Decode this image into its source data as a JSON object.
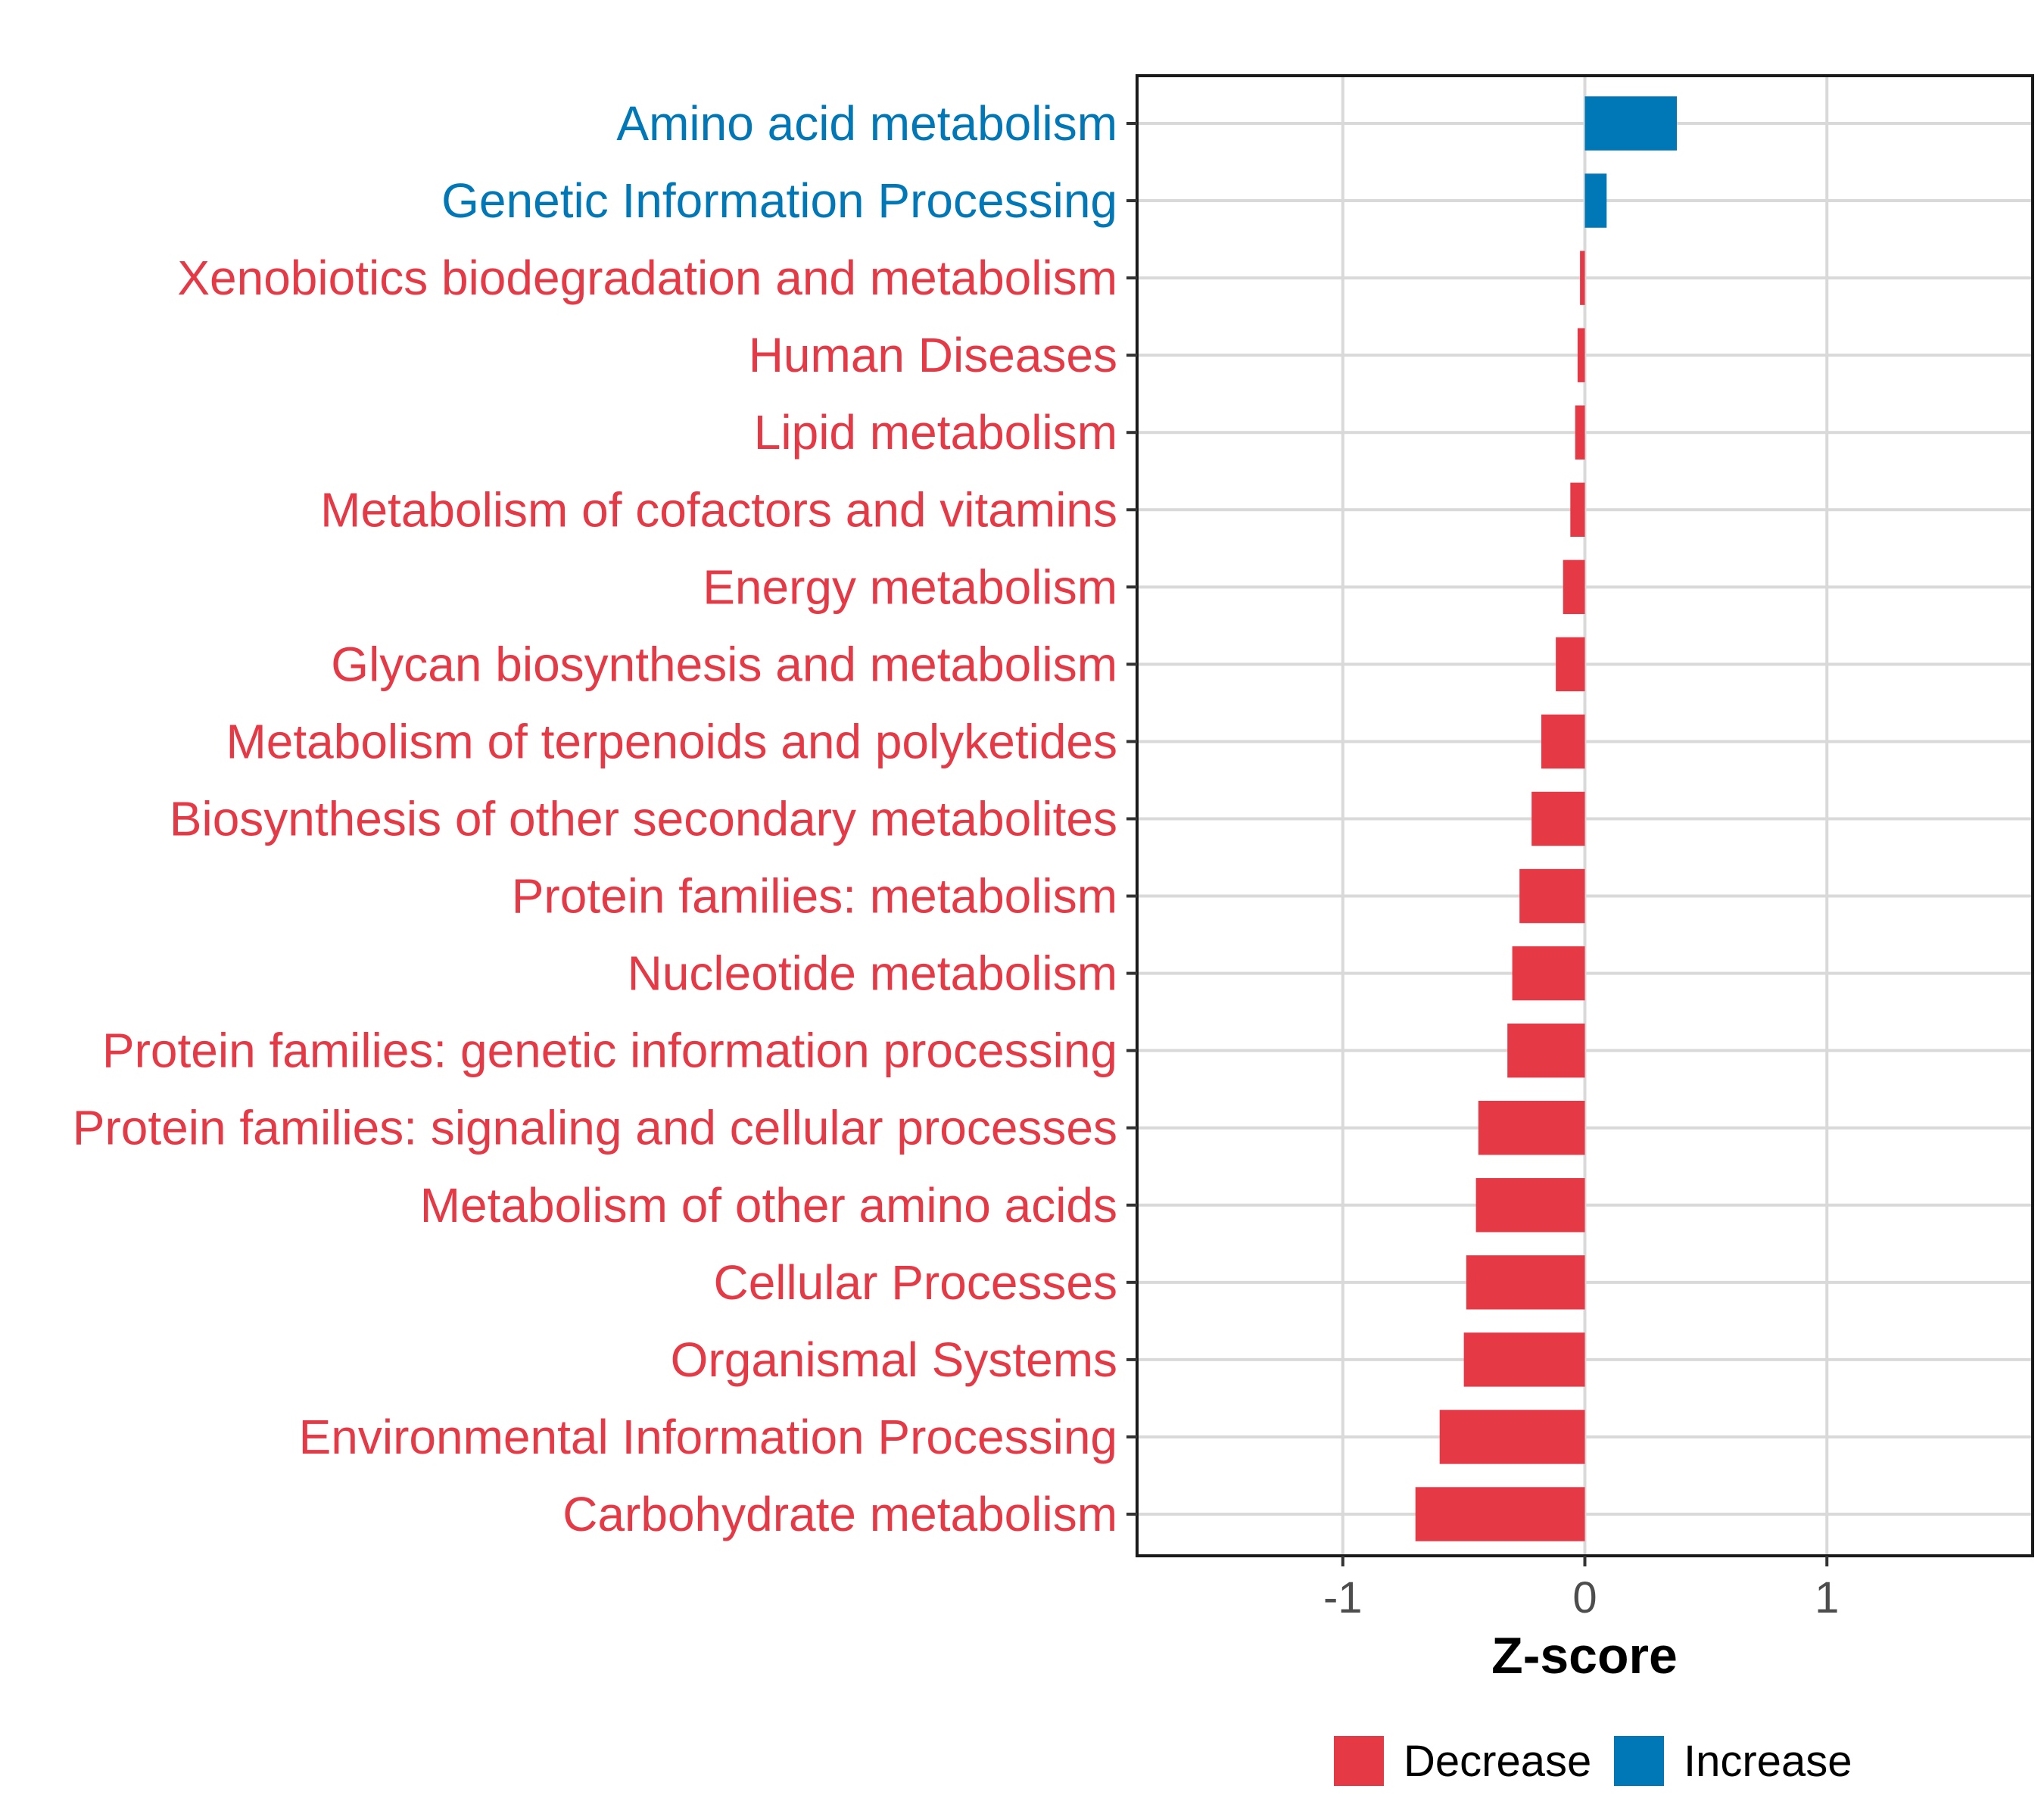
{
  "chart_data": {
    "type": "bar",
    "orientation": "horizontal",
    "title": "",
    "xlabel": "Z-score",
    "ylabel": "",
    "xlim": [
      -1.85,
      1.85
    ],
    "xticks": [
      -1,
      0,
      1
    ],
    "xtick_labels": [
      "-1",
      "0",
      "1"
    ],
    "grid": true,
    "categories": [
      "Amino acid metabolism",
      "Genetic Information Processing",
      "Xenobiotics biodegradation and metabolism",
      "Human Diseases",
      "Lipid metabolism",
      "Metabolism of cofactors and vitamins",
      "Energy metabolism",
      "Glycan biosynthesis and metabolism",
      "Metabolism of terpenoids and polyketides",
      "Biosynthesis of other secondary metabolites",
      "Protein families: metabolism",
      "Nucleotide metabolism",
      "Protein families: genetic information processing",
      "Protein families: signaling and cellular processes",
      "Metabolism of other amino acids",
      "Cellular Processes",
      "Organismal Systems",
      "Environmental Information Processing",
      "Carbohydrate metabolism"
    ],
    "values": [
      0.38,
      0.09,
      -0.02,
      -0.03,
      -0.04,
      -0.06,
      -0.09,
      -0.12,
      -0.18,
      -0.22,
      -0.27,
      -0.3,
      -0.32,
      -0.44,
      -0.45,
      -0.49,
      -0.5,
      -0.6,
      -0.7
    ],
    "groups": [
      "Increase",
      "Increase",
      "Decrease",
      "Decrease",
      "Decrease",
      "Decrease",
      "Decrease",
      "Decrease",
      "Decrease",
      "Decrease",
      "Decrease",
      "Decrease",
      "Decrease",
      "Decrease",
      "Decrease",
      "Decrease",
      "Decrease",
      "Decrease",
      "Decrease"
    ],
    "legend": [
      {
        "name": "Decrease",
        "color": "#E63946"
      },
      {
        "name": "Increase",
        "color": "#0077B6"
      }
    ],
    "legend_position": "bottom"
  }
}
